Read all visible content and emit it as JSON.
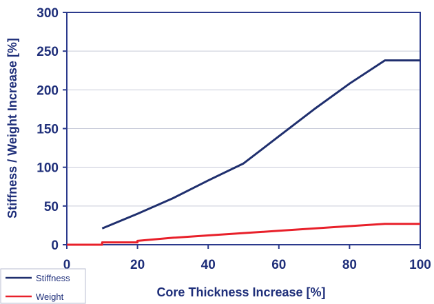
{
  "chart_data": {
    "type": "line",
    "title": "",
    "xlabel": "Core Thickness Increase [%]",
    "ylabel": "Stiffness / Weight Increase [%]",
    "xlim": [
      0,
      100
    ],
    "ylim": [
      0,
      300
    ],
    "xticks": [
      0,
      20,
      40,
      60,
      80,
      100
    ],
    "yticks": [
      0,
      50,
      100,
      150,
      200,
      250,
      300
    ],
    "grid": "horizontal",
    "legend_position": "bottom-left",
    "series": [
      {
        "name": "Stiffness",
        "color": "#1f2f6e",
        "x": [
          10,
          20,
          30,
          40,
          50,
          60,
          70,
          80,
          90,
          100
        ],
        "y": [
          21,
          40,
          60,
          83,
          105,
          140,
          175,
          208,
          238,
          238
        ]
      },
      {
        "name": "Weight",
        "color": "#e8202a",
        "x": [
          0,
          10,
          10,
          20,
          20,
          30,
          40,
          50,
          60,
          70,
          80,
          90,
          100
        ],
        "y": [
          0,
          0,
          3,
          3,
          5,
          9,
          12,
          15,
          18,
          21,
          24,
          27,
          27
        ]
      }
    ]
  }
}
